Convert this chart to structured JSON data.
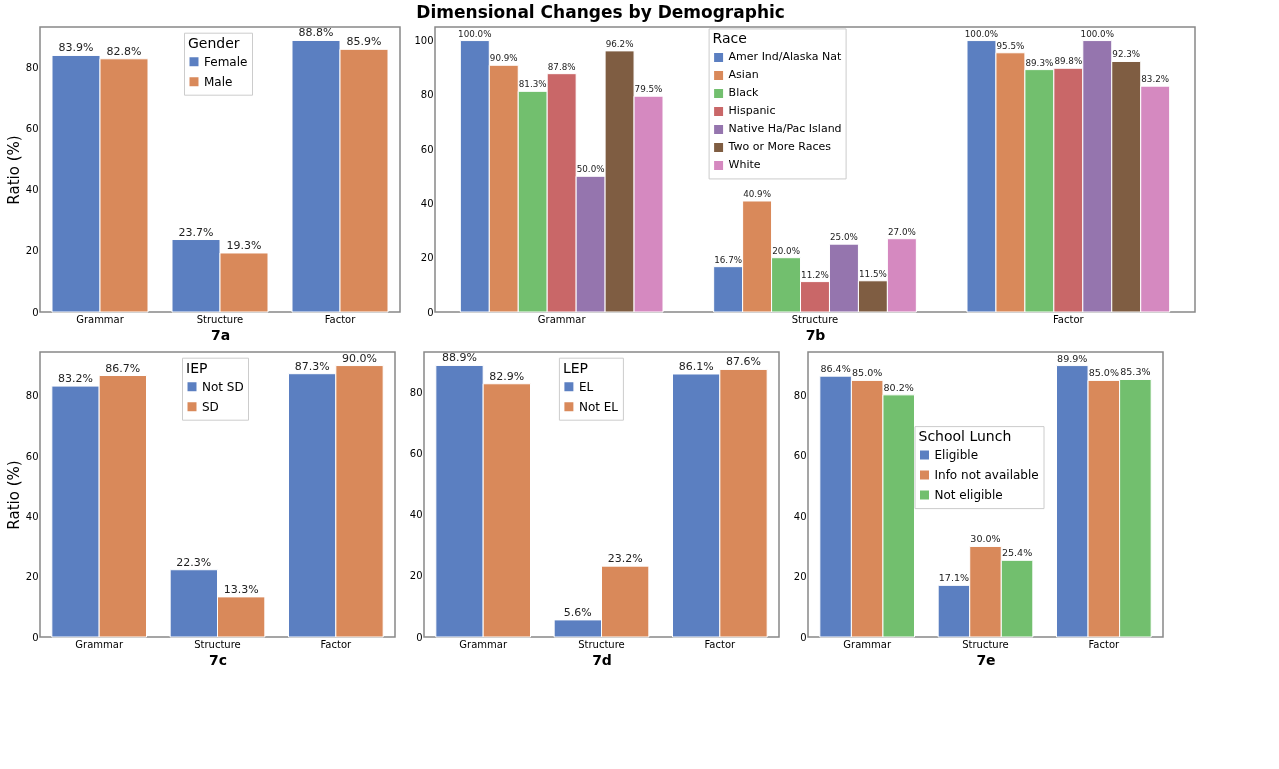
{
  "chart_data": [
    {
      "type": "bar",
      "xlabel": "7a",
      "ylabel": "Ratio (%)",
      "legend_title": "Gender",
      "legend": "top",
      "categories": [
        "Grammar",
        "Structure",
        "Factor"
      ],
      "ylim": [
        0,
        93.2
      ],
      "yticks": [
        0,
        20,
        40,
        60,
        80
      ],
      "series": [
        {
          "name": "Female",
          "color": "#5b7fc1",
          "values": [
            83.9,
            23.7,
            88.8
          ],
          "value_labels": [
            "83.9%",
            "23.7%",
            "88.8%"
          ]
        },
        {
          "name": "Male",
          "color": "#d9895a",
          "values": [
            82.8,
            19.3,
            85.9
          ],
          "value_labels": [
            "82.8%",
            "19.3%",
            "85.9%"
          ]
        }
      ]
    },
    {
      "type": "bar",
      "title": "Dimensional Changes by Demographic",
      "xlabel": "7b",
      "legend_title": "Race",
      "legend": "top",
      "categories": [
        "Grammar",
        "Structure",
        "Factor"
      ],
      "ylim": [
        0,
        105
      ],
      "yticks": [
        0,
        20,
        40,
        60,
        80,
        100
      ],
      "series": [
        {
          "name": "Amer Ind/Alaska Nat",
          "color": "#5b7fc1",
          "values": [
            100.0,
            16.7,
            100.0
          ],
          "value_labels": [
            "100.0%",
            "16.7%",
            "100.0%"
          ]
        },
        {
          "name": "Asian",
          "color": "#d9895a",
          "values": [
            90.9,
            40.9,
            95.5
          ],
          "value_labels": [
            "90.9%",
            "40.9%",
            "95.5%"
          ]
        },
        {
          "name": "Black",
          "color": "#72bf6e",
          "values": [
            81.3,
            20.0,
            89.3
          ],
          "value_labels": [
            "81.3%",
            "20.0%",
            "89.3%"
          ]
        },
        {
          "name": "Hispanic",
          "color": "#c96768",
          "values": [
            87.8,
            11.2,
            89.8
          ],
          "value_labels": [
            "87.8%",
            "11.2%",
            "89.8%"
          ]
        },
        {
          "name": "Native Ha/Pac Island",
          "color": "#9575ae",
          "values": [
            50.0,
            25.0,
            100.0
          ],
          "value_labels": [
            "50.0%",
            "25.0%",
            "100.0%"
          ]
        },
        {
          "name": "Two or More Races",
          "color": "#7f5d42",
          "values": [
            96.2,
            11.5,
            92.3
          ],
          "value_labels": [
            "96.2%",
            "11.5%",
            "92.3%"
          ]
        },
        {
          "name": "White",
          "color": "#d589c0",
          "values": [
            79.5,
            27.0,
            83.2
          ],
          "value_labels": [
            "79.5%",
            "27.0%",
            "83.2%"
          ]
        }
      ]
    },
    {
      "type": "bar",
      "xlabel": "7c",
      "ylabel": "Ratio (%)",
      "legend_title": "IEP",
      "legend": "top",
      "categories": [
        "Grammar",
        "Structure",
        "Factor"
      ],
      "ylim": [
        0,
        94.5
      ],
      "yticks": [
        0,
        20,
        40,
        60,
        80
      ],
      "series": [
        {
          "name": "Not SD",
          "color": "#5b7fc1",
          "values": [
            83.2,
            22.3,
            87.3
          ],
          "value_labels": [
            "83.2%",
            "22.3%",
            "87.3%"
          ]
        },
        {
          "name": "SD",
          "color": "#d9895a",
          "values": [
            86.7,
            13.3,
            90.0
          ],
          "value_labels": [
            "86.7%",
            "13.3%",
            "90.0%"
          ]
        }
      ]
    },
    {
      "type": "bar",
      "xlabel": "7d",
      "legend_title": "LEP",
      "legend": "top",
      "categories": [
        "Grammar",
        "Structure",
        "Factor"
      ],
      "ylim": [
        0,
        93.3
      ],
      "yticks": [
        0,
        20,
        40,
        60,
        80
      ],
      "series": [
        {
          "name": "EL",
          "color": "#5b7fc1",
          "values": [
            88.9,
            5.6,
            86.1
          ],
          "value_labels": [
            "88.9%",
            "5.6%",
            "86.1%"
          ]
        },
        {
          "name": "Not EL",
          "color": "#d9895a",
          "values": [
            82.9,
            23.2,
            87.6
          ],
          "value_labels": [
            "82.9%",
            "23.2%",
            "87.6%"
          ]
        }
      ]
    },
    {
      "type": "bar",
      "xlabel": "7e",
      "legend_title": "School Lunch",
      "legend": "center",
      "categories": [
        "Grammar",
        "Structure",
        "Factor"
      ],
      "ylim": [
        0,
        94.4
      ],
      "yticks": [
        0,
        20,
        40,
        60,
        80
      ],
      "series": [
        {
          "name": "Eligible",
          "color": "#5b7fc1",
          "values": [
            86.4,
            17.1,
            89.9
          ],
          "value_labels": [
            "86.4%",
            "17.1%",
            "89.9%"
          ]
        },
        {
          "name": "Info not available",
          "color": "#d9895a",
          "values": [
            85.0,
            30.0,
            85.0
          ],
          "value_labels": [
            "85.0%",
            "30.0%",
            "85.0%"
          ]
        },
        {
          "name": "Not eligible",
          "color": "#72bf6e",
          "values": [
            80.2,
            25.4,
            85.3
          ],
          "value_labels": [
            "80.2%",
            "25.4%",
            "85.3%"
          ]
        }
      ]
    }
  ]
}
